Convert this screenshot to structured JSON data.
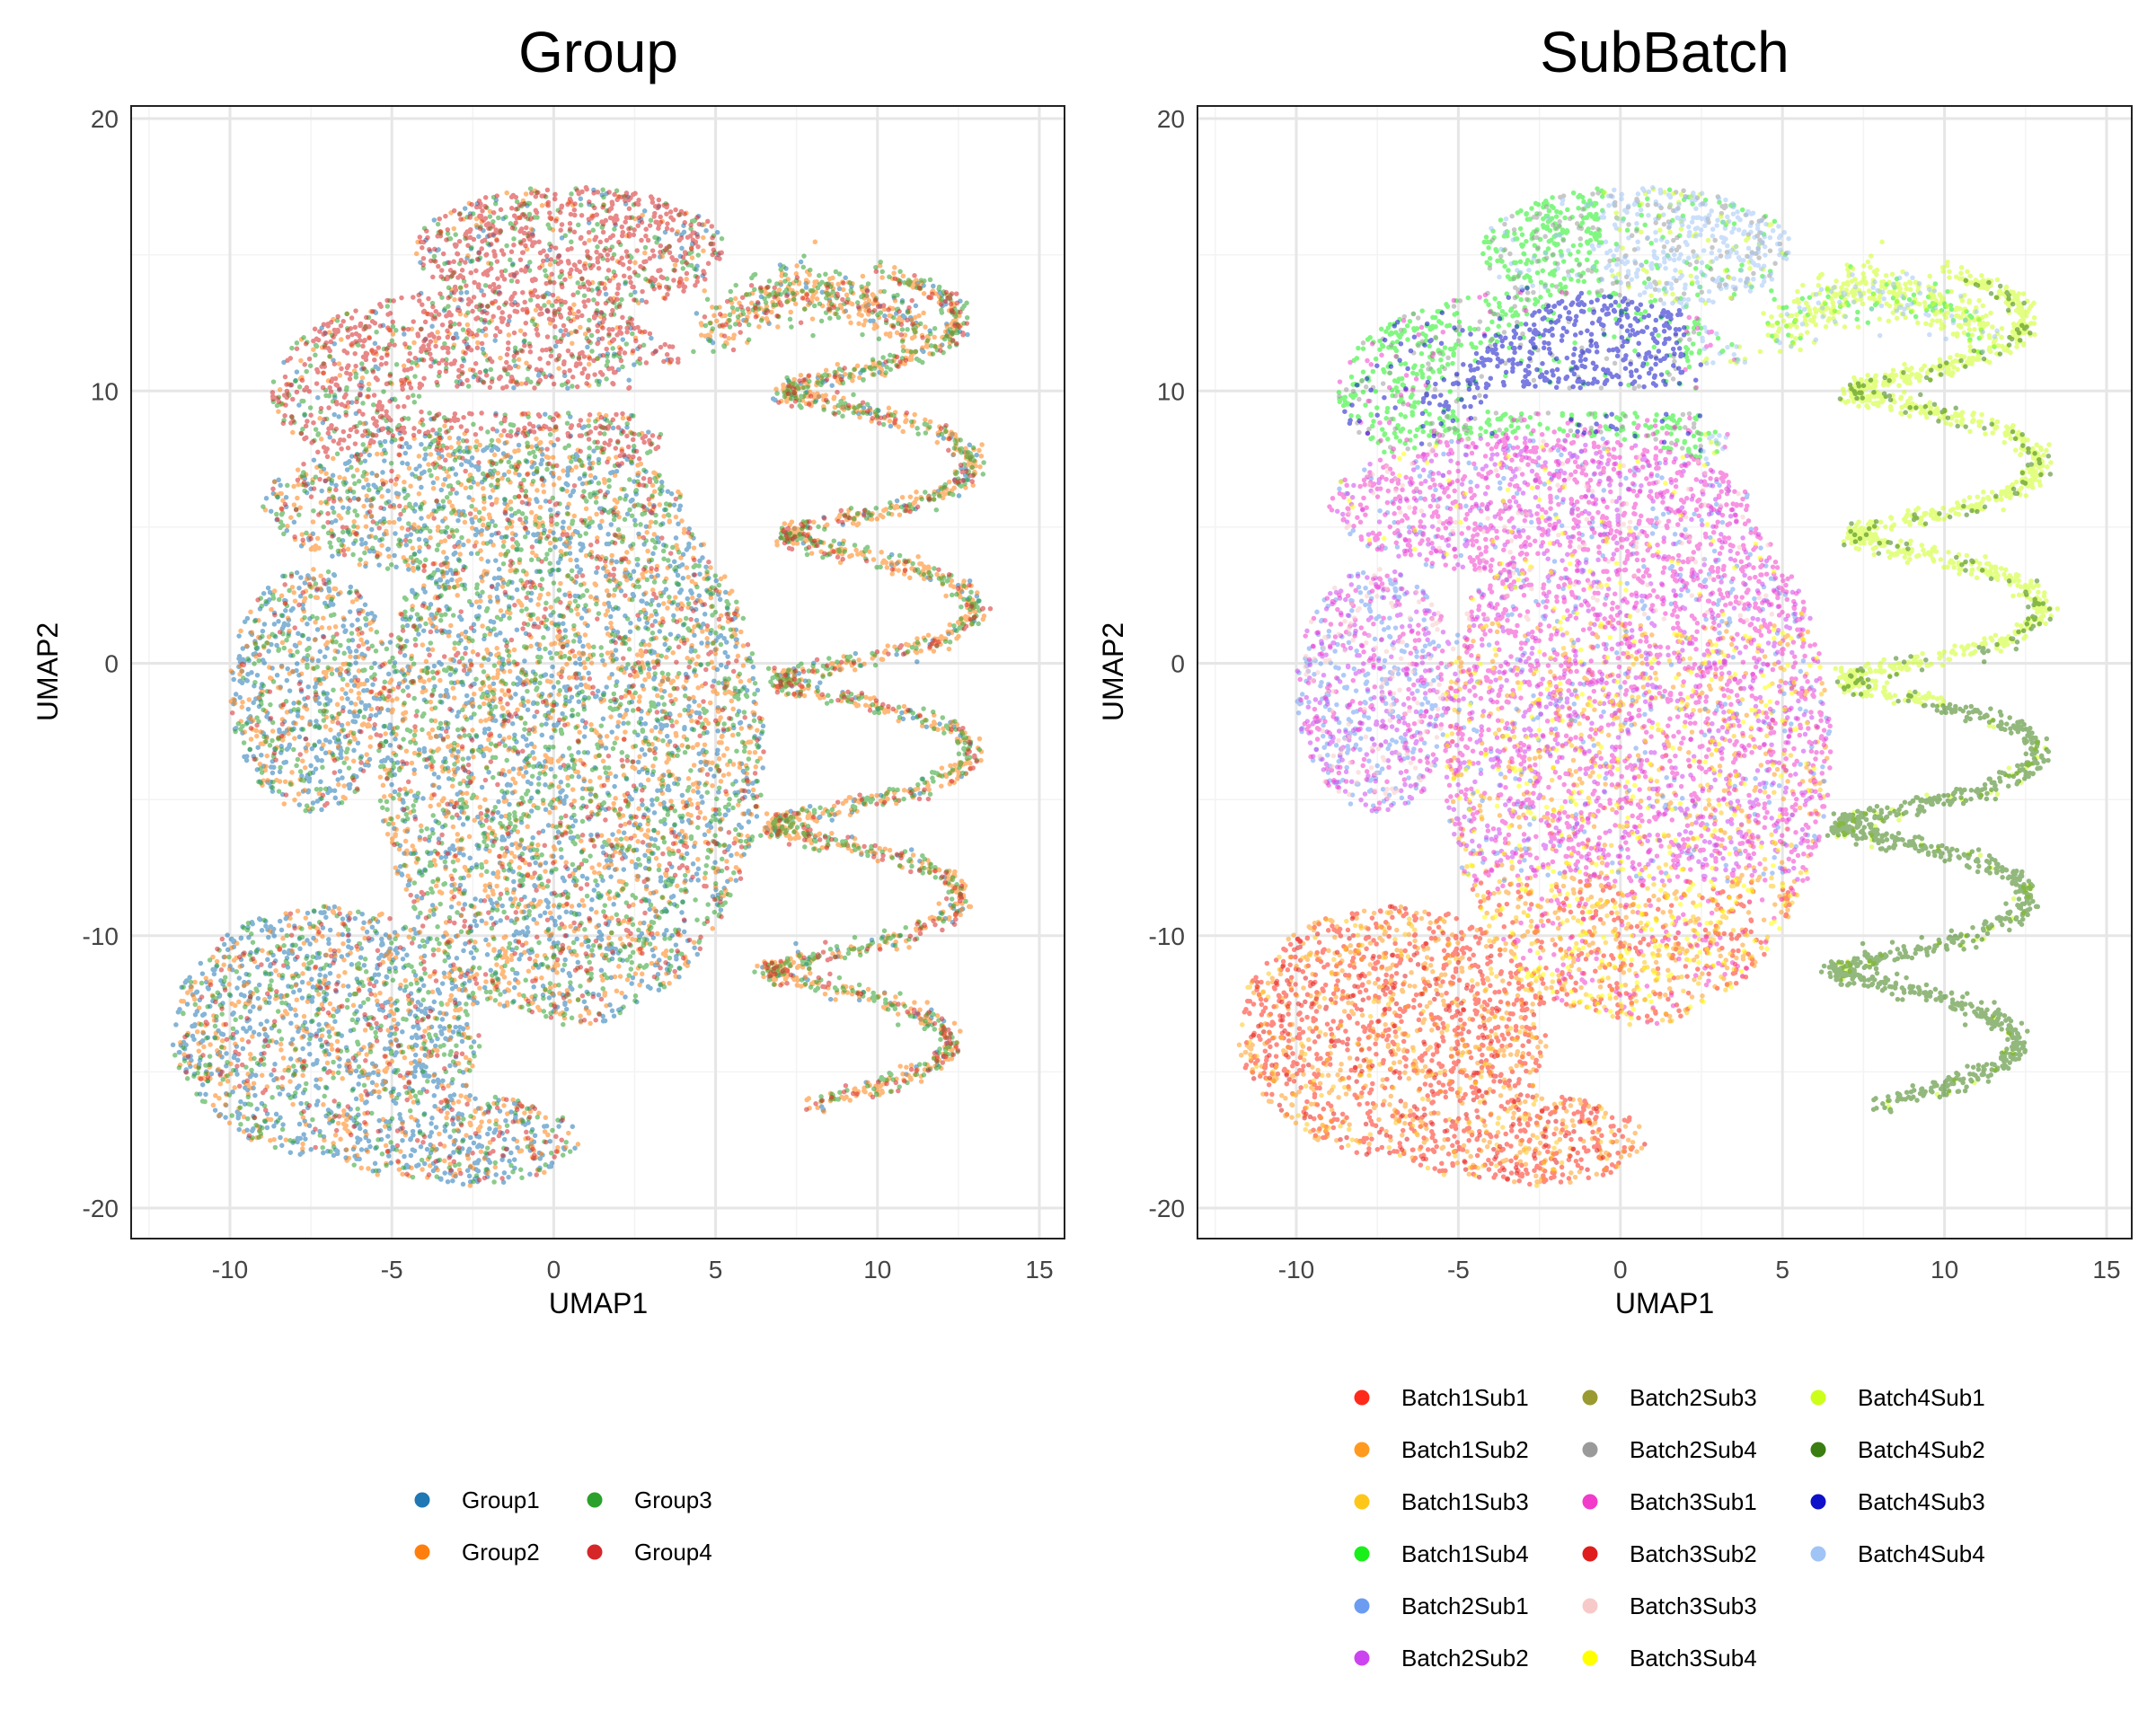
{
  "chart_data": [
    {
      "type": "scatter",
      "title": "Group",
      "xlabel": "UMAP1",
      "ylabel": "UMAP2",
      "xlim": [
        -13,
        16
      ],
      "ylim": [
        -21,
        20.5
      ],
      "x_ticks": [
        -10,
        -5,
        0,
        5,
        10,
        15
      ],
      "y_ticks": [
        -20,
        -10,
        0,
        10,
        20
      ],
      "grid": true,
      "legend_position": "bottom",
      "legend_columns": 2,
      "series": [
        {
          "name": "Group1",
          "color": "#1f77b4"
        },
        {
          "name": "Group2",
          "color": "#ff7f0e"
        },
        {
          "name": "Group3",
          "color": "#2ca02c"
        },
        {
          "name": "Group4",
          "color": "#d62728"
        }
      ]
    },
    {
      "type": "scatter",
      "title": "SubBatch",
      "xlabel": "UMAP1",
      "ylabel": "UMAP2",
      "xlim": [
        -13,
        16
      ],
      "ylim": [
        -21,
        20.5
      ],
      "x_ticks": [
        -10,
        -5,
        0,
        5,
        10,
        15
      ],
      "y_ticks": [
        -20,
        -10,
        0,
        10,
        20
      ],
      "grid": true,
      "legend_position": "bottom",
      "legend_columns": 3,
      "series": [
        {
          "name": "Batch1Sub1",
          "color": "#ff2a1a"
        },
        {
          "name": "Batch1Sub2",
          "color": "#ff9a1f"
        },
        {
          "name": "Batch1Sub3",
          "color": "#ffc61a"
        },
        {
          "name": "Batch1Sub4",
          "color": "#19f019"
        },
        {
          "name": "Batch2Sub1",
          "color": "#6b9cf2"
        },
        {
          "name": "Batch2Sub2",
          "color": "#cc44f0"
        },
        {
          "name": "Batch2Sub3",
          "color": "#9a9a33"
        },
        {
          "name": "Batch2Sub4",
          "color": "#9a9a9a"
        },
        {
          "name": "Batch3Sub1",
          "color": "#f23acb"
        },
        {
          "name": "Batch3Sub2",
          "color": "#e01d1d"
        },
        {
          "name": "Batch3Sub3",
          "color": "#f8c9c9"
        },
        {
          "name": "Batch3Sub4",
          "color": "#ffff00"
        },
        {
          "name": "Batch4Sub1",
          "color": "#ccff1a"
        },
        {
          "name": "Batch4Sub2",
          "color": "#3a7d12"
        },
        {
          "name": "Batch4Sub3",
          "color": "#0f10c9"
        },
        {
          "name": "Batch4Sub4",
          "color": "#a0c4f5"
        }
      ]
    }
  ]
}
